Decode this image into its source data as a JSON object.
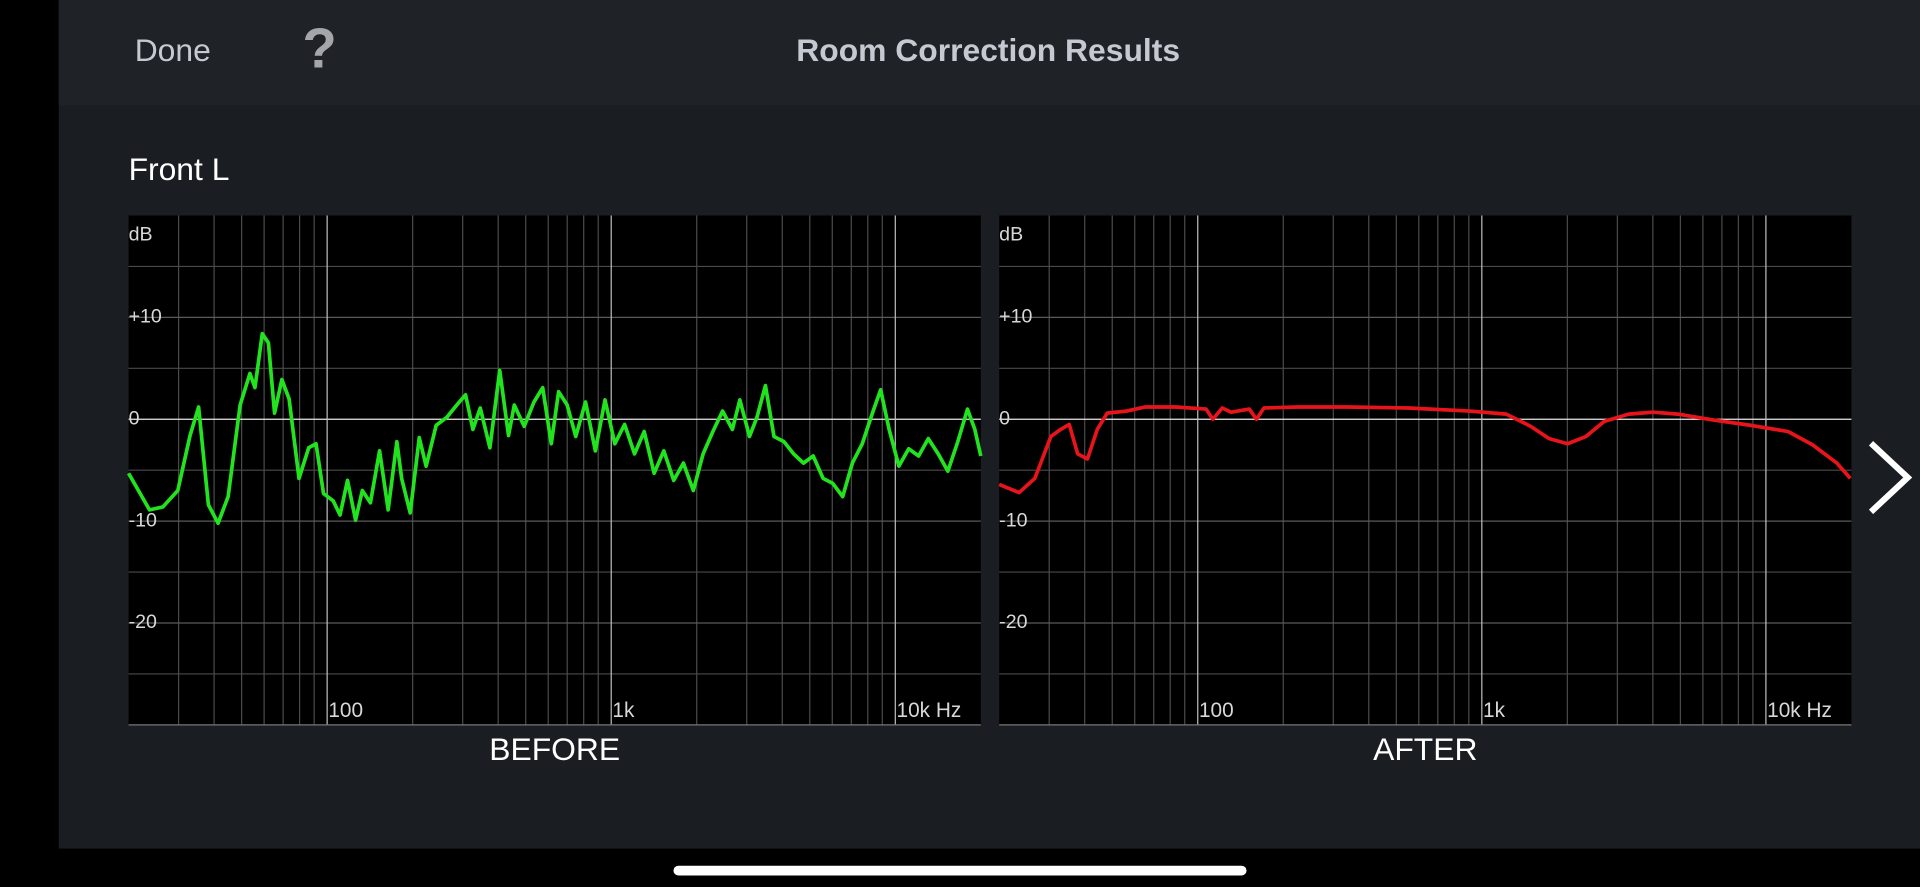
{
  "header": {
    "done": "Done",
    "help": "?",
    "title": "Room Correction Results"
  },
  "channel": "Front L",
  "chart_data": [
    {
      "type": "line",
      "title": "BEFORE",
      "y_label": "dB",
      "xscale": "log",
      "xlim": [
        20,
        20000
      ],
      "ylim": [
        -30,
        20
      ],
      "xticks": [
        {
          "value": 100,
          "label": "100"
        },
        {
          "value": 1000,
          "label": "1k"
        },
        {
          "value": 10000,
          "label": "10k Hz"
        }
      ],
      "minor_xticks": [
        30,
        40,
        50,
        60,
        70,
        80,
        90,
        200,
        300,
        400,
        500,
        600,
        700,
        800,
        900,
        2000,
        3000,
        4000,
        5000,
        6000,
        7000,
        8000,
        9000
      ],
      "yticks": [
        {
          "value": 10,
          "label": "+10"
        },
        0,
        -10,
        -20
      ],
      "minor_yticks": [
        15,
        5,
        -5,
        -15,
        -25
      ],
      "grid": true,
      "x": [
        20,
        23.7,
        26.4,
        29.8,
        32.9,
        35.3,
        38.2,
        41.3,
        44.8,
        49.4,
        53.5,
        55.7,
        59.1,
        62.1,
        65.3,
        69.3,
        73.5,
        79.6,
        86.1,
        91.4,
        97.1,
        105,
        111,
        118,
        126,
        133,
        142,
        153,
        164,
        176,
        183,
        196,
        211,
        223,
        242,
        264,
        286,
        307,
        326,
        346,
        374,
        405,
        435,
        456,
        494,
        535,
        574,
        615,
        653,
        700,
        750,
        812,
        879,
        951,
        1030,
        1115,
        1208,
        1306,
        1416,
        1532,
        1660,
        1795,
        1945,
        2105,
        2280,
        2467,
        2671,
        2837,
        3069,
        3259,
        3491,
        3741,
        4055,
        4385,
        4751,
        5140,
        5570,
        6026,
        6531,
        7063,
        7656,
        8282,
        8877,
        9510,
        10300,
        11150,
        12080,
        13070,
        14160,
        15320,
        16600,
        17950,
        19050,
        20000
      ],
      "series": [
        {
          "color": "#22e41e",
          "values": [
            -5.3,
            -8.9,
            -8.6,
            -7,
            -1.6,
            1.2,
            -8.4,
            -10.2,
            -7.6,
            1.4,
            4.5,
            3.1,
            8.4,
            7.5,
            0.6,
            3.9,
            2,
            -5.8,
            -2.8,
            -2.4,
            -7.3,
            -8,
            -9.4,
            -6,
            -9.9,
            -7,
            -8.2,
            -3.1,
            -8.9,
            -2.2,
            -5.8,
            -9.2,
            -1.8,
            -4.6,
            -0.6,
            0.2,
            1.4,
            2.4,
            -1,
            1.1,
            -2.8,
            4.8,
            -1.6,
            1.4,
            -0.7,
            1.7,
            3.1,
            -2.4,
            2.7,
            1.4,
            -1.7,
            1.7,
            -3.1,
            1.9,
            -2.4,
            -0.5,
            -3.4,
            -1.2,
            -5.3,
            -3.1,
            -6,
            -4.3,
            -7,
            -3.4,
            -1.2,
            0.8,
            -1,
            1.9,
            -1.7,
            0.2,
            3.3,
            -1.7,
            -2.2,
            -3.4,
            -4.3,
            -3.6,
            -5.8,
            -6.3,
            -7.6,
            -4.3,
            -2.4,
            0.5,
            2.9,
            -1,
            -4.6,
            -2.9,
            -3.6,
            -1.9,
            -3.4,
            -5.1,
            -2.2,
            1,
            -1,
            -3.6
          ]
        }
      ]
    },
    {
      "type": "line",
      "title": "AFTER",
      "y_label": "dB",
      "xscale": "log",
      "xlim": [
        20,
        20000
      ],
      "ylim": [
        -30,
        20
      ],
      "xticks": [
        {
          "value": 100,
          "label": "100"
        },
        {
          "value": 1000,
          "label": "1k"
        },
        {
          "value": 10000,
          "label": "10k Hz"
        }
      ],
      "minor_xticks": [
        30,
        40,
        50,
        60,
        70,
        80,
        90,
        200,
        300,
        400,
        500,
        600,
        700,
        800,
        900,
        2000,
        3000,
        4000,
        5000,
        6000,
        7000,
        8000,
        9000
      ],
      "yticks": [
        {
          "value": 10,
          "label": "+10"
        },
        0,
        -10,
        -20
      ],
      "minor_yticks": [
        15,
        5,
        -5,
        -15,
        -25
      ],
      "grid": true,
      "x": [
        20,
        23.5,
        26.7,
        30.4,
        32.9,
        35.3,
        37.8,
        40.9,
        44.3,
        48,
        56.2,
        65.3,
        83.6,
        107,
        113,
        122,
        131,
        152,
        161,
        171,
        226,
        336,
        551,
        906,
        1219,
        1486,
        1726,
        2004,
        2323,
        2698,
        3289,
        4011,
        4893,
        6590,
        8877,
        11960,
        14590,
        17780,
        19820
      ],
      "series": [
        {
          "color": "#e8141c",
          "values": [
            -6.4,
            -7.2,
            -5.8,
            -1.7,
            -1,
            -0.5,
            -3.4,
            -3.9,
            -1,
            0.6,
            0.8,
            1.2,
            1.2,
            1,
            0,
            1.1,
            0.7,
            1,
            0,
            1.1,
            1.2,
            1.2,
            1.1,
            0.8,
            0.5,
            -0.7,
            -1.9,
            -2.4,
            -1.7,
            -0.2,
            0.5,
            0.7,
            0.5,
            -0.1,
            -0.6,
            -1.2,
            -2.5,
            -4.3,
            -5.8
          ]
        }
      ]
    }
  ]
}
